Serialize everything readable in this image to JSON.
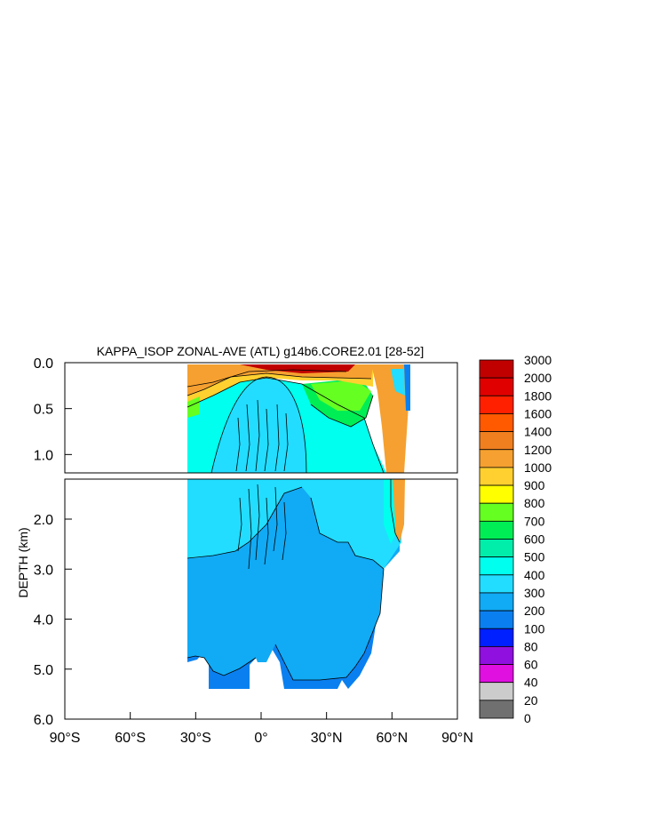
{
  "chart_data": {
    "type": "heatmap",
    "title": "KAPPA_ISOP ZONAL-AVE (ATL) g14b6.CORE2.01 [28-52]",
    "ylabel": "DEPTH (km)",
    "xlabel": "",
    "xlim": [
      -90,
      90
    ],
    "ylim": [
      6.0,
      0.0
    ],
    "upper_panel_ylim": [
      1.2,
      0.0
    ],
    "lower_panel_ylim": [
      6.0,
      1.2
    ],
    "x_ticks": [
      {
        "value": -90,
        "label": "90°S"
      },
      {
        "value": -60,
        "label": "60°S"
      },
      {
        "value": -30,
        "label": "30°S"
      },
      {
        "value": 0,
        "label": "0°"
      },
      {
        "value": 30,
        "label": "30°N"
      },
      {
        "value": 60,
        "label": "60°N"
      },
      {
        "value": 90,
        "label": "90°N"
      }
    ],
    "y_ticks_upper": [
      {
        "value": 0.0,
        "label": "0.0"
      },
      {
        "value": 0.5,
        "label": "0.5"
      },
      {
        "value": 1.0,
        "label": "1.0"
      }
    ],
    "y_ticks_lower": [
      {
        "value": 2.0,
        "label": "2.0"
      },
      {
        "value": 3.0,
        "label": "3.0"
      },
      {
        "value": 4.0,
        "label": "4.0"
      },
      {
        "value": 5.0,
        "label": "5.0"
      },
      {
        "value": 6.0,
        "label": "6.0"
      }
    ],
    "colorbar": {
      "labels": [
        "3000",
        "2000",
        "1800",
        "1600",
        "1400",
        "1200",
        "1000",
        "900",
        "800",
        "700",
        "600",
        "500",
        "400",
        "300",
        "200",
        "100",
        "80",
        "60",
        "40",
        "20",
        "0"
      ],
      "colors": [
        "#c00000",
        "#e00000",
        "#ff2000",
        "#ff5a00",
        "#f07f20",
        "#f5a030",
        "#ffd030",
        "#ffff00",
        "#66ff22",
        "#00ee55",
        "#00eeaa",
        "#00ffee",
        "#22ddff",
        "#11aaf5",
        "#0a80f0",
        "#0020ff",
        "#9010e0",
        "#e010e0",
        "#cccccc",
        "#707070"
      ]
    },
    "field_regions": [
      {
        "value_range": "200-300",
        "color": "#11aaf5"
      },
      {
        "value_range": "300-400",
        "color": "#22ddff"
      },
      {
        "value_range": "400-500",
        "color": "#00ffee"
      },
      {
        "value_range": "500-600",
        "color": "#00eeaa"
      },
      {
        "value_range": "600-700",
        "color": "#00ee55"
      },
      {
        "value_range": "700-800",
        "color": "#66ff22"
      },
      {
        "value_range": "900-1000",
        "color": "#ffd030"
      },
      {
        "value_range": "1000-1600",
        "color": "#f5a030"
      },
      {
        "value_range": "1600-3000",
        "color": "#c00000"
      }
    ]
  }
}
